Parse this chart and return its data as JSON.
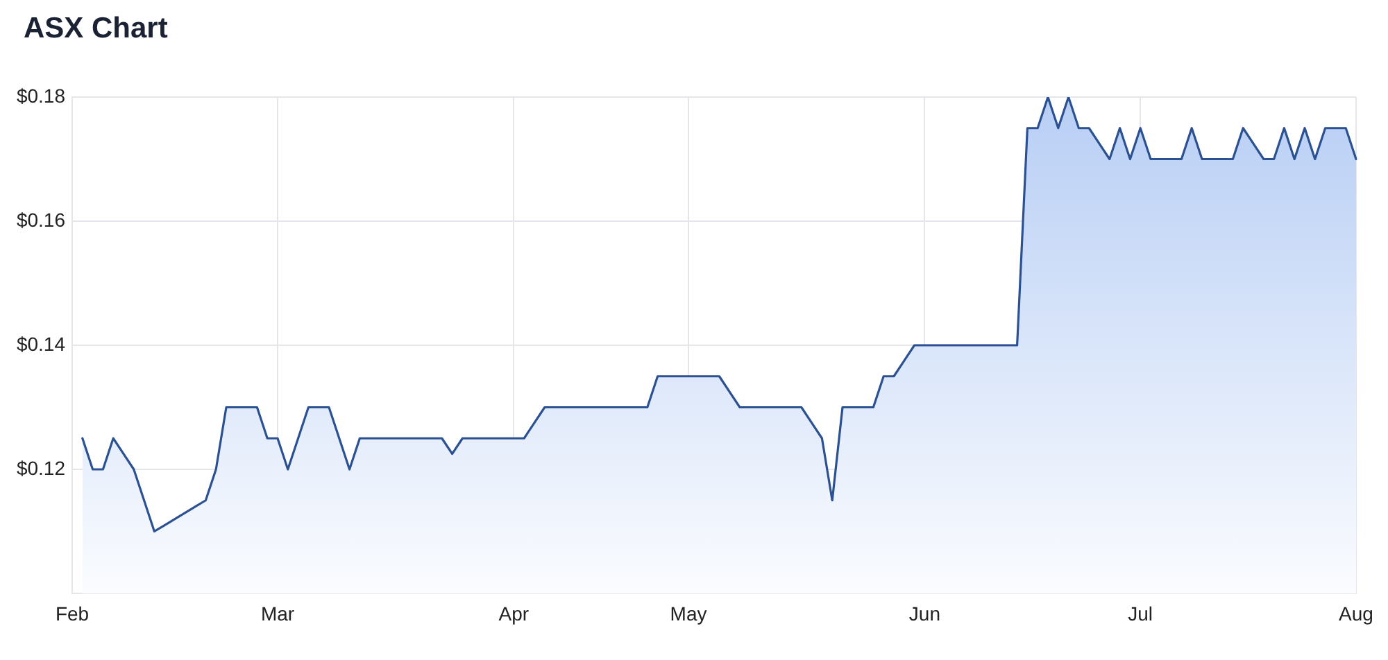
{
  "chart_data": {
    "type": "area",
    "title": "ASX Chart",
    "categories": [
      "Feb",
      null,
      null,
      null,
      null,
      null,
      null,
      null,
      null,
      null,
      null,
      null,
      null,
      null,
      null,
      null,
      null,
      null,
      null,
      null,
      "Mar",
      null,
      null,
      null,
      null,
      null,
      null,
      null,
      null,
      null,
      null,
      null,
      null,
      null,
      null,
      null,
      null,
      null,
      null,
      null,
      null,
      null,
      null,
      "Apr",
      null,
      null,
      null,
      null,
      null,
      null,
      null,
      null,
      null,
      null,
      null,
      null,
      null,
      null,
      null,
      null,
      "May",
      null,
      null,
      null,
      null,
      null,
      null,
      null,
      null,
      null,
      null,
      null,
      null,
      null,
      null,
      null,
      null,
      null,
      null,
      null,
      null,
      null,
      null,
      "Jun",
      null,
      null,
      null,
      null,
      null,
      null,
      null,
      null,
      null,
      null,
      null,
      null,
      null,
      null,
      null,
      null,
      null,
      null,
      null,
      null,
      "Jul",
      null,
      null,
      null,
      null,
      null,
      null,
      null,
      null,
      null,
      null,
      null,
      null,
      null,
      null,
      null,
      null,
      null,
      null,
      null,
      null,
      "Aug"
    ],
    "values": [
      null,
      0.125,
      0.12,
      0.12,
      0.125,
      0.1225,
      0.12,
      0.115,
      0.11,
      0.111,
      0.112,
      0.113,
      0.114,
      0.115,
      0.12,
      0.13,
      0.13,
      0.13,
      0.13,
      0.125,
      0.125,
      0.12,
      0.125,
      0.13,
      0.13,
      0.13,
      0.125,
      0.12,
      0.125,
      0.125,
      0.125,
      0.125,
      0.125,
      0.125,
      0.125,
      0.125,
      0.125,
      0.1225,
      0.125,
      0.125,
      0.125,
      0.125,
      0.125,
      0.125,
      0.125,
      0.1275,
      0.13,
      0.13,
      0.13,
      0.13,
      0.13,
      0.13,
      0.13,
      0.13,
      0.13,
      0.13,
      0.13,
      0.135,
      0.135,
      0.135,
      0.135,
      0.135,
      0.135,
      0.135,
      0.1325,
      0.13,
      0.13,
      0.13,
      0.13,
      0.13,
      0.13,
      0.13,
      0.1275,
      0.125,
      0.115,
      0.13,
      0.13,
      0.13,
      0.13,
      0.135,
      0.135,
      0.1375,
      0.14,
      0.14,
      0.14,
      0.14,
      0.14,
      0.14,
      0.14,
      0.14,
      0.14,
      0.14,
      0.14,
      0.175,
      0.175,
      0.18,
      0.175,
      0.18,
      0.175,
      0.175,
      0.1725,
      0.17,
      0.175,
      0.17,
      0.175,
      0.17,
      0.17,
      0.17,
      0.17,
      0.175,
      0.17,
      0.17,
      0.17,
      0.17,
      0.175,
      0.1725,
      0.17,
      0.17,
      0.175,
      0.17,
      0.175,
      0.17,
      0.175,
      0.175,
      0.175,
      0.17
    ],
    "color": "#2b5192",
    "ylim": [
      0.1,
      0.18
    ],
    "yticks": [
      {
        "value": 0.1,
        "label": null
      },
      {
        "value": 0.12,
        "label": "$0.12"
      },
      {
        "value": 0.14,
        "label": "$0.14"
      },
      {
        "value": 0.16,
        "label": "$0.16"
      },
      {
        "value": 0.18,
        "label": "$0.18"
      }
    ],
    "grid": true
  }
}
